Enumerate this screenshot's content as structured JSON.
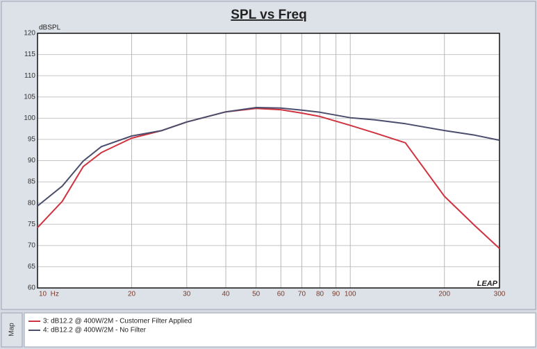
{
  "chart_data": {
    "type": "line",
    "title": "SPL vs Freq",
    "ylabel": "dBSPL",
    "watermark": "LEAP",
    "legend_title": "Map",
    "log_x": true,
    "grid": true,
    "xlim": [
      10,
      300
    ],
    "ylim": [
      60,
      120
    ],
    "xticks": [
      {
        "value": 10,
        "label": "10  Hz"
      },
      20,
      30,
      40,
      50,
      60,
      70,
      80,
      90,
      100,
      200,
      300
    ],
    "yticks": [
      60,
      65,
      70,
      75,
      80,
      85,
      90,
      95,
      100,
      105,
      110,
      115,
      120
    ],
    "x": [
      10,
      12,
      14,
      16,
      20,
      25,
      30,
      40,
      50,
      60,
      70,
      80,
      100,
      120,
      150,
      200,
      250,
      300
    ],
    "series": [
      {
        "name": "3: dB12.2 @ 400W/2M - Customer Filter Applied",
        "color": "#d0323f",
        "values": [
          74.2,
          80.4,
          88.6,
          91.9,
          95.3,
          97.1,
          99.1,
          101.5,
          102.3,
          102.0,
          101.2,
          100.4,
          98.3,
          96.5,
          94.2,
          81.6,
          74.7,
          69.3
        ]
      },
      {
        "name": "4: dB12.2 @ 400W/2M - No Filter",
        "color": "#4a4d6c",
        "values": [
          79.3,
          84.0,
          89.9,
          93.3,
          95.8,
          97.1,
          99.1,
          101.5,
          102.5,
          102.4,
          101.9,
          101.4,
          100.1,
          99.6,
          98.7,
          97.1,
          96.0,
          94.8
        ]
      }
    ]
  }
}
